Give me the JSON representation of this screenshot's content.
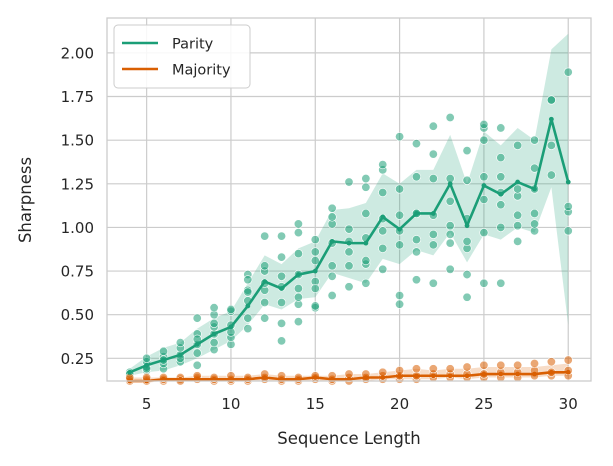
{
  "chart_data": {
    "type": "line",
    "title": "",
    "xlabel": "Sequence Length",
    "ylabel": "Sharpness",
    "xlim": [
      2.65,
      31.35
    ],
    "ylim": [
      0.12,
      2.2
    ],
    "xticks": [
      5,
      10,
      15,
      20,
      25,
      30
    ],
    "yticks": [
      0.25,
      0.5,
      0.75,
      1.0,
      1.25,
      1.5,
      1.75,
      2.0
    ],
    "ytick_labels": [
      "0.25",
      "0.50",
      "0.75",
      "1.00",
      "1.25",
      "1.50",
      "1.75",
      "2.00"
    ],
    "grid": true,
    "legend_position": "top-left",
    "x": [
      4,
      5,
      6,
      7,
      8,
      9,
      10,
      11,
      12,
      13,
      14,
      15,
      16,
      17,
      18,
      19,
      20,
      21,
      22,
      23,
      24,
      25,
      26,
      27,
      28,
      29,
      30
    ],
    "series": [
      {
        "name": "Parity",
        "color": "#1b9e77",
        "mean": [
          0.17,
          0.21,
          0.24,
          0.27,
          0.33,
          0.39,
          0.43,
          0.55,
          0.69,
          0.65,
          0.73,
          0.75,
          0.92,
          0.91,
          0.91,
          1.06,
          0.99,
          1.08,
          1.08,
          1.25,
          1.01,
          1.24,
          1.19,
          1.26,
          1.22,
          1.62,
          1.26
        ],
        "lower": [
          0.15,
          0.17,
          0.18,
          0.21,
          0.25,
          0.3,
          0.35,
          0.44,
          0.56,
          0.53,
          0.59,
          0.6,
          0.74,
          0.71,
          0.68,
          0.82,
          0.79,
          0.87,
          0.84,
          0.97,
          0.8,
          0.96,
          0.93,
          1.0,
          0.97,
          1.23,
          0.44
        ],
        "upper": [
          0.19,
          0.26,
          0.31,
          0.34,
          0.42,
          0.48,
          0.52,
          0.68,
          0.84,
          0.79,
          0.88,
          0.92,
          1.1,
          1.11,
          1.14,
          1.31,
          1.25,
          1.33,
          1.33,
          1.53,
          1.25,
          1.55,
          1.47,
          1.57,
          1.5,
          2.02,
          2.11
        ],
        "points": [
          [
            4,
            0.15
          ],
          [
            4,
            0.17
          ],
          [
            4,
            0.16
          ],
          [
            5,
            0.18
          ],
          [
            5,
            0.2
          ],
          [
            5,
            0.23
          ],
          [
            5,
            0.25
          ],
          [
            5,
            0.19
          ],
          [
            6,
            0.19
          ],
          [
            6,
            0.22
          ],
          [
            6,
            0.26
          ],
          [
            6,
            0.29
          ],
          [
            6,
            0.24
          ],
          [
            7,
            0.23
          ],
          [
            7,
            0.27
          ],
          [
            7,
            0.31
          ],
          [
            7,
            0.34
          ],
          [
            7,
            0.25
          ],
          [
            8,
            0.28
          ],
          [
            8,
            0.33
          ],
          [
            8,
            0.39
          ],
          [
            8,
            0.48
          ],
          [
            8,
            0.21
          ],
          [
            8,
            0.36
          ],
          [
            9,
            0.3
          ],
          [
            9,
            0.34
          ],
          [
            9,
            0.39
          ],
          [
            9,
            0.43
          ],
          [
            9,
            0.5
          ],
          [
            9,
            0.54
          ],
          [
            9,
            0.45
          ],
          [
            10,
            0.33
          ],
          [
            10,
            0.37
          ],
          [
            10,
            0.44
          ],
          [
            10,
            0.52
          ],
          [
            10,
            0.53
          ],
          [
            10,
            0.4
          ],
          [
            11,
            0.42
          ],
          [
            11,
            0.48
          ],
          [
            11,
            0.58
          ],
          [
            11,
            0.64
          ],
          [
            11,
            0.73
          ],
          [
            11,
            0.7
          ],
          [
            11,
            0.63
          ],
          [
            12,
            0.48
          ],
          [
            12,
            0.57
          ],
          [
            12,
            0.64
          ],
          [
            12,
            0.75
          ],
          [
            12,
            0.95
          ],
          [
            12,
            0.68
          ],
          [
            12,
            0.78
          ],
          [
            13,
            0.35
          ],
          [
            13,
            0.45
          ],
          [
            13,
            0.57
          ],
          [
            13,
            0.66
          ],
          [
            13,
            0.83
          ],
          [
            13,
            0.95
          ],
          [
            13,
            0.72
          ],
          [
            14,
            0.46
          ],
          [
            14,
            0.56
          ],
          [
            14,
            0.65
          ],
          [
            14,
            0.73
          ],
          [
            14,
            0.85
          ],
          [
            14,
            0.97
          ],
          [
            14,
            1.02
          ],
          [
            14,
            0.6
          ],
          [
            15,
            0.54
          ],
          [
            15,
            0.55
          ],
          [
            15,
            0.69
          ],
          [
            15,
            0.81
          ],
          [
            15,
            0.86
          ],
          [
            15,
            0.93
          ],
          [
            15,
            0.65
          ],
          [
            16,
            0.61
          ],
          [
            16,
            0.72
          ],
          [
            16,
            0.78
          ],
          [
            16,
            0.91
          ],
          [
            16,
            1.02
          ],
          [
            16,
            1.11
          ],
          [
            16,
            1.06
          ],
          [
            17,
            0.66
          ],
          [
            17,
            0.78
          ],
          [
            17,
            0.86
          ],
          [
            17,
            0.99
          ],
          [
            17,
            1.26
          ],
          [
            17,
            0.92
          ],
          [
            18,
            0.68
          ],
          [
            18,
            0.79
          ],
          [
            18,
            0.94
          ],
          [
            18,
            1.08
          ],
          [
            18,
            1.23
          ],
          [
            18,
            1.28
          ],
          [
            18,
            0.81
          ],
          [
            19,
            0.76
          ],
          [
            19,
            0.88
          ],
          [
            19,
            1.05
          ],
          [
            19,
            1.2
          ],
          [
            19,
            1.33
          ],
          [
            19,
            1.36
          ],
          [
            19,
            0.98
          ],
          [
            20,
            0.56
          ],
          [
            20,
            0.61
          ],
          [
            20,
            0.9
          ],
          [
            20,
            1.07
          ],
          [
            20,
            1.22
          ],
          [
            20,
            1.52
          ],
          [
            20,
            0.98
          ],
          [
            21,
            0.7
          ],
          [
            21,
            0.93
          ],
          [
            21,
            1.08
          ],
          [
            21,
            1.29
          ],
          [
            21,
            1.48
          ],
          [
            21,
            1.08
          ],
          [
            21,
            0.86
          ],
          [
            22,
            0.68
          ],
          [
            22,
            0.9
          ],
          [
            22,
            1.07
          ],
          [
            22,
            1.28
          ],
          [
            22,
            1.42
          ],
          [
            22,
            1.58
          ],
          [
            22,
            0.96
          ],
          [
            23,
            0.76
          ],
          [
            23,
            0.91
          ],
          [
            23,
            1.01
          ],
          [
            23,
            1.15
          ],
          [
            23,
            1.28
          ],
          [
            23,
            1.63
          ],
          [
            23,
            0.96
          ],
          [
            24,
            0.6
          ],
          [
            24,
            0.73
          ],
          [
            24,
            0.88
          ],
          [
            24,
            1.05
          ],
          [
            24,
            1.27
          ],
          [
            24,
            1.44
          ],
          [
            24,
            0.92
          ],
          [
            25,
            0.68
          ],
          [
            25,
            0.97
          ],
          [
            25,
            1.16
          ],
          [
            25,
            1.29
          ],
          [
            25,
            1.5
          ],
          [
            25,
            1.57
          ],
          [
            25,
            1.59
          ],
          [
            26,
            0.68
          ],
          [
            26,
            1.0
          ],
          [
            26,
            1.13
          ],
          [
            26,
            1.29
          ],
          [
            26,
            1.4
          ],
          [
            26,
            1.57
          ],
          [
            26,
            1.2
          ],
          [
            27,
            0.92
          ],
          [
            27,
            1.07
          ],
          [
            27,
            1.18
          ],
          [
            27,
            1.47
          ],
          [
            27,
            1.22
          ],
          [
            27,
            1.01
          ],
          [
            28,
            0.98
          ],
          [
            28,
            1.08
          ],
          [
            28,
            1.22
          ],
          [
            28,
            1.34
          ],
          [
            28,
            1.5
          ],
          [
            28,
            1.02
          ],
          [
            29,
            1.3
          ],
          [
            29,
            1.73
          ],
          [
            29,
            1.47
          ],
          [
            29,
            1.73
          ],
          [
            30,
            0.98
          ],
          [
            30,
            1.09
          ],
          [
            30,
            1.12
          ],
          [
            30,
            1.89
          ]
        ]
      },
      {
        "name": "Majority",
        "color": "#d95f02",
        "mean": [
          0.12,
          0.12,
          0.13,
          0.13,
          0.13,
          0.13,
          0.13,
          0.13,
          0.14,
          0.13,
          0.13,
          0.14,
          0.13,
          0.13,
          0.14,
          0.14,
          0.15,
          0.15,
          0.15,
          0.15,
          0.15,
          0.16,
          0.16,
          0.16,
          0.16,
          0.17,
          0.17
        ],
        "lower": [
          0.11,
          0.11,
          0.12,
          0.12,
          0.12,
          0.12,
          0.12,
          0.12,
          0.12,
          0.12,
          0.12,
          0.12,
          0.12,
          0.12,
          0.12,
          0.13,
          0.13,
          0.13,
          0.13,
          0.14,
          0.13,
          0.14,
          0.14,
          0.14,
          0.14,
          0.15,
          0.15
        ],
        "upper": [
          0.14,
          0.14,
          0.14,
          0.14,
          0.15,
          0.15,
          0.15,
          0.15,
          0.16,
          0.15,
          0.15,
          0.15,
          0.15,
          0.16,
          0.16,
          0.17,
          0.18,
          0.19,
          0.18,
          0.19,
          0.19,
          0.2,
          0.2,
          0.2,
          0.2,
          0.21,
          0.22
        ],
        "points": [
          [
            4,
            0.12
          ],
          [
            4,
            0.13
          ],
          [
            4,
            0.14
          ],
          [
            5,
            0.12
          ],
          [
            5,
            0.13
          ],
          [
            5,
            0.14
          ],
          [
            6,
            0.12
          ],
          [
            6,
            0.13
          ],
          [
            6,
            0.14
          ],
          [
            7,
            0.13
          ],
          [
            7,
            0.14
          ],
          [
            7,
            0.12
          ],
          [
            8,
            0.13
          ],
          [
            8,
            0.14
          ],
          [
            8,
            0.15
          ],
          [
            9,
            0.12
          ],
          [
            9,
            0.13
          ],
          [
            9,
            0.14
          ],
          [
            10,
            0.12
          ],
          [
            10,
            0.13
          ],
          [
            10,
            0.15
          ],
          [
            11,
            0.12
          ],
          [
            11,
            0.13
          ],
          [
            11,
            0.14
          ],
          [
            12,
            0.13
          ],
          [
            12,
            0.14
          ],
          [
            12,
            0.16
          ],
          [
            13,
            0.12
          ],
          [
            13,
            0.13
          ],
          [
            13,
            0.15
          ],
          [
            14,
            0.12
          ],
          [
            14,
            0.13
          ],
          [
            14,
            0.14
          ],
          [
            15,
            0.13
          ],
          [
            15,
            0.14
          ],
          [
            15,
            0.15
          ],
          [
            16,
            0.12
          ],
          [
            16,
            0.13
          ],
          [
            16,
            0.15
          ],
          [
            17,
            0.12
          ],
          [
            17,
            0.14
          ],
          [
            17,
            0.16
          ],
          [
            18,
            0.13
          ],
          [
            18,
            0.14
          ],
          [
            18,
            0.16
          ],
          [
            19,
            0.13
          ],
          [
            19,
            0.15
          ],
          [
            19,
            0.17
          ],
          [
            20,
            0.13
          ],
          [
            20,
            0.15
          ],
          [
            20,
            0.18
          ],
          [
            21,
            0.13
          ],
          [
            21,
            0.15
          ],
          [
            21,
            0.19
          ],
          [
            22,
            0.14
          ],
          [
            22,
            0.16
          ],
          [
            22,
            0.19
          ],
          [
            23,
            0.14
          ],
          [
            23,
            0.16
          ],
          [
            23,
            0.19
          ],
          [
            24,
            0.14
          ],
          [
            24,
            0.16
          ],
          [
            24,
            0.2
          ],
          [
            25,
            0.14
          ],
          [
            25,
            0.16
          ],
          [
            25,
            0.21
          ],
          [
            26,
            0.14
          ],
          [
            26,
            0.17
          ],
          [
            26,
            0.21
          ],
          [
            27,
            0.14
          ],
          [
            27,
            0.17
          ],
          [
            27,
            0.21
          ],
          [
            28,
            0.15
          ],
          [
            28,
            0.18
          ],
          [
            28,
            0.22
          ],
          [
            29,
            0.15
          ],
          [
            29,
            0.17
          ],
          [
            29,
            0.23
          ],
          [
            30,
            0.15
          ],
          [
            30,
            0.18
          ],
          [
            30,
            0.24
          ]
        ]
      }
    ]
  }
}
